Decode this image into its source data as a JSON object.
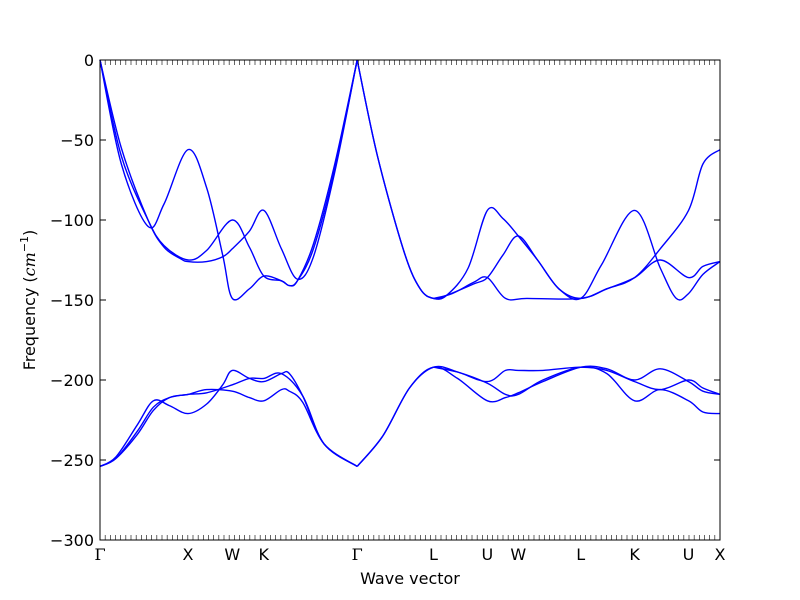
{
  "chart_data": {
    "type": "line",
    "title": "",
    "xlabel": "Wave vector",
    "ylabel": "Frequency ",
    "ylabel_unit": "(cm⁻¹)",
    "ylabel_unit_base": "cm",
    "ylabel_unit_exp": "−1",
    "ylim": [
      -300,
      0
    ],
    "yticks": [
      0,
      -50,
      -100,
      -150,
      -200,
      -250,
      -300
    ],
    "ytick_labels": [
      "0",
      "−50",
      "−100",
      "−150",
      "−200",
      "−250",
      "−300"
    ],
    "xlim": [
      0,
      11.62
    ],
    "kpoints": [
      {
        "label": "Γ",
        "x": 0.0
      },
      {
        "label": "X",
        "x": 1.65
      },
      {
        "label": "W",
        "x": 2.48
      },
      {
        "label": "K",
        "x": 3.07
      },
      {
        "label": "Γ",
        "x": 4.82
      },
      {
        "label": "L",
        "x": 6.25
      },
      {
        "label": "U",
        "x": 7.26
      },
      {
        "label": "W",
        "x": 7.84
      },
      {
        "label": "L",
        "x": 9.01
      },
      {
        "label": "K",
        "x": 10.02
      },
      {
        "label": "U",
        "x": 11.03
      },
      {
        "label": "X",
        "x": 11.62
      }
    ],
    "line_color": "#0000ff",
    "series": [
      {
        "points": [
          [
            0,
            0
          ],
          [
            0.4,
            -55
          ],
          [
            0.9,
            -100
          ],
          [
            1.2,
            -117
          ],
          [
            1.5,
            -124
          ],
          [
            1.65,
            -126
          ],
          [
            2.0,
            -126
          ],
          [
            2.3,
            -123
          ],
          [
            2.48,
            -118
          ],
          [
            2.8,
            -107
          ],
          [
            3.07,
            -94
          ],
          [
            3.4,
            -118
          ],
          [
            3.7,
            -137
          ],
          [
            4.0,
            -123
          ],
          [
            4.4,
            -70
          ],
          [
            4.82,
            0
          ]
        ]
      },
      {
        "points": [
          [
            0,
            0
          ],
          [
            0.4,
            -65
          ],
          [
            0.9,
            -104
          ],
          [
            1.2,
            -90
          ],
          [
            1.65,
            -56
          ],
          [
            2.0,
            -80
          ],
          [
            2.3,
            -122
          ],
          [
            2.48,
            -149
          ],
          [
            2.8,
            -143
          ],
          [
            3.07,
            -135
          ],
          [
            3.4,
            -138
          ],
          [
            3.55,
            -141
          ],
          [
            3.7,
            -138
          ],
          [
            4.0,
            -115
          ],
          [
            4.4,
            -65
          ],
          [
            4.82,
            0
          ]
        ]
      },
      {
        "points": [
          [
            0,
            0
          ],
          [
            0.4,
            -60
          ],
          [
            0.9,
            -100
          ],
          [
            1.2,
            -116
          ],
          [
            1.65,
            -125
          ],
          [
            2.0,
            -119
          ],
          [
            2.48,
            -100
          ],
          [
            2.8,
            -117
          ],
          [
            3.07,
            -135
          ],
          [
            3.4,
            -138
          ],
          [
            3.55,
            -141
          ],
          [
            3.7,
            -138
          ],
          [
            4.0,
            -118
          ],
          [
            4.4,
            -68
          ],
          [
            4.82,
            0
          ]
        ]
      },
      {
        "points": [
          [
            4.82,
            0
          ],
          [
            5.2,
            -60
          ],
          [
            5.7,
            -120
          ],
          [
            6.0,
            -143
          ],
          [
            6.25,
            -149
          ],
          [
            6.5,
            -147
          ],
          [
            7.0,
            -140
          ],
          [
            7.26,
            -136
          ],
          [
            7.55,
            -122
          ],
          [
            7.84,
            -110
          ],
          [
            8.2,
            -125
          ],
          [
            8.6,
            -143
          ],
          [
            9.01,
            -149
          ],
          [
            9.5,
            -143
          ],
          [
            10.02,
            -136
          ],
          [
            10.5,
            -118
          ],
          [
            11.03,
            -94
          ],
          [
            11.3,
            -65
          ],
          [
            11.62,
            -56
          ]
        ]
      },
      {
        "points": [
          [
            4.82,
            0
          ],
          [
            5.2,
            -60
          ],
          [
            5.7,
            -120
          ],
          [
            6.0,
            -143
          ],
          [
            6.25,
            -149
          ],
          [
            6.5,
            -147
          ],
          [
            6.9,
            -130
          ],
          [
            7.26,
            -94
          ],
          [
            7.55,
            -99
          ],
          [
            7.84,
            -110
          ],
          [
            8.2,
            -125
          ],
          [
            8.6,
            -143
          ],
          [
            9.01,
            -149
          ],
          [
            9.4,
            -128
          ],
          [
            10.02,
            -94
          ],
          [
            10.5,
            -130
          ],
          [
            10.8,
            -149
          ],
          [
            11.03,
            -146
          ],
          [
            11.3,
            -134
          ],
          [
            11.62,
            -126
          ]
        ]
      },
      {
        "points": [
          [
            6.25,
            -149
          ],
          [
            6.6,
            -146
          ],
          [
            7.0,
            -139
          ],
          [
            7.26,
            -136
          ],
          [
            7.6,
            -149
          ],
          [
            8.0,
            -149
          ],
          [
            9.01,
            -149
          ],
          [
            9.5,
            -143
          ],
          [
            10.02,
            -136
          ],
          [
            10.5,
            -125
          ],
          [
            11.03,
            -136
          ],
          [
            11.3,
            -129
          ],
          [
            11.62,
            -126
          ]
        ]
      },
      {
        "points": [
          [
            0,
            -254
          ],
          [
            0.3,
            -248
          ],
          [
            0.7,
            -228
          ],
          [
            1.0,
            -213
          ],
          [
            1.3,
            -216
          ],
          [
            1.65,
            -221
          ],
          [
            2.0,
            -215
          ],
          [
            2.3,
            -203
          ],
          [
            2.48,
            -194
          ],
          [
            2.8,
            -199
          ],
          [
            3.07,
            -201
          ],
          [
            3.4,
            -196
          ],
          [
            3.55,
            -196
          ],
          [
            3.8,
            -210
          ],
          [
            4.2,
            -240
          ],
          [
            4.82,
            -254
          ]
        ]
      },
      {
        "points": [
          [
            0,
            -254
          ],
          [
            0.3,
            -249
          ],
          [
            0.7,
            -234
          ],
          [
            1.0,
            -219
          ],
          [
            1.3,
            -211
          ],
          [
            1.65,
            -209
          ],
          [
            2.0,
            -206
          ],
          [
            2.48,
            -207
          ],
          [
            2.8,
            -211
          ],
          [
            3.07,
            -213
          ],
          [
            3.4,
            -206
          ],
          [
            3.55,
            -207
          ],
          [
            3.8,
            -214
          ],
          [
            4.2,
            -240
          ],
          [
            4.82,
            -254
          ]
        ]
      },
      {
        "points": [
          [
            0,
            -254
          ],
          [
            0.3,
            -249
          ],
          [
            0.7,
            -232
          ],
          [
            1.0,
            -217
          ],
          [
            1.3,
            -211
          ],
          [
            1.65,
            -209
          ],
          [
            2.0,
            -208
          ],
          [
            2.48,
            -203
          ],
          [
            2.8,
            -199
          ],
          [
            3.07,
            -199
          ],
          [
            3.4,
            -196
          ],
          [
            3.8,
            -210
          ],
          [
            4.2,
            -240
          ],
          [
            4.82,
            -254
          ]
        ]
      },
      {
        "points": [
          [
            4.82,
            -254
          ],
          [
            5.3,
            -235
          ],
          [
            5.8,
            -205
          ],
          [
            6.25,
            -192
          ],
          [
            6.7,
            -195
          ],
          [
            7.26,
            -202
          ],
          [
            7.6,
            -209
          ],
          [
            7.84,
            -209
          ],
          [
            8.3,
            -200
          ],
          [
            9.01,
            -192
          ],
          [
            9.5,
            -196
          ],
          [
            10.02,
            -213
          ],
          [
            10.5,
            -206
          ],
          [
            11.03,
            -213
          ],
          [
            11.3,
            -220
          ],
          [
            11.62,
            -221
          ]
        ]
      },
      {
        "points": [
          [
            4.82,
            -254
          ],
          [
            5.3,
            -235
          ],
          [
            5.8,
            -205
          ],
          [
            6.25,
            -192
          ],
          [
            6.7,
            -199
          ],
          [
            7.26,
            -213
          ],
          [
            7.6,
            -211
          ],
          [
            7.84,
            -208
          ],
          [
            8.3,
            -201
          ],
          [
            9.01,
            -192
          ],
          [
            9.5,
            -193
          ],
          [
            10.02,
            -200
          ],
          [
            10.5,
            -193
          ],
          [
            11.03,
            -201
          ],
          [
            11.3,
            -207
          ],
          [
            11.62,
            -209
          ]
        ]
      },
      {
        "points": [
          [
            6.25,
            -192
          ],
          [
            6.7,
            -195
          ],
          [
            7.26,
            -201
          ],
          [
            7.6,
            -194
          ],
          [
            7.84,
            -194
          ],
          [
            8.3,
            -194
          ],
          [
            9.01,
            -192
          ],
          [
            9.5,
            -194
          ],
          [
            10.02,
            -201
          ],
          [
            10.5,
            -206
          ],
          [
            11.03,
            -200
          ],
          [
            11.3,
            -205
          ],
          [
            11.62,
            -209
          ]
        ]
      }
    ]
  }
}
